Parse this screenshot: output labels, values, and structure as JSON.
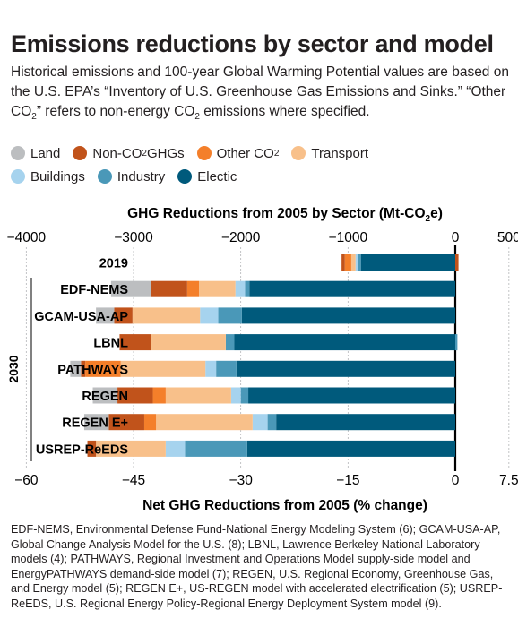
{
  "header": {
    "title": "Emissions reductions by sector and model",
    "subtitle_before": "Historical emissions and 100-year Global Warming Potential values are based on the U.S. EPA’s “Inventory of U.S. Greenhouse Gas Emissions and Sinks.” “Other CO",
    "subtitle_sub": "2",
    "subtitle_middle": "” refers to non-energy CO",
    "subtitle_after": " emissions where specified."
  },
  "legend": [
    {
      "label": "Land",
      "sub": "",
      "color": "#bcbec0"
    },
    {
      "label": "Non-CO",
      "sub": "2",
      "suffix": " GHGs",
      "color": "#c1531b"
    },
    {
      "label": "Other CO",
      "sub": "2",
      "suffix": "",
      "color": "#f47f2a"
    },
    {
      "label": "Transport",
      "sub": "",
      "color": "#f8c08a"
    },
    {
      "label": "Buildings",
      "sub": "",
      "color": "#a6d3ee"
    },
    {
      "label": "Industry",
      "sub": "",
      "color": "#4a98b8"
    },
    {
      "label": "Electic",
      "sub": "",
      "color": "#005a7c"
    }
  ],
  "chart_data": {
    "type": "bar",
    "orientation": "horizontal",
    "stacked": true,
    "top_axis_title": "GHG Reductions from 2005 by Sector (Mt-CO",
    "top_axis_title_sub": "2",
    "top_axis_title_end": "e)",
    "top_axis_ticks": [
      "−4000",
      "−3000",
      "−2000",
      "−1000",
      "0",
      "500"
    ],
    "top_axis_values": [
      -4000,
      -3000,
      -2000,
      -1000,
      0,
      500
    ],
    "xlim": [
      -4000,
      500
    ],
    "bottom_axis_title": "Net GHG Reductions from 2005 (% change)",
    "bottom_axis_ticks": [
      "−60",
      "−45",
      "−30",
      "−15",
      "0",
      "7.5"
    ],
    "bottom_axis_values": [
      -60,
      -45,
      -30,
      -15,
      0,
      7.5
    ],
    "group_label": "2030",
    "categories": [
      "2019",
      "EDF-NEMS",
      "GCAM-USA-AP",
      "LBNL",
      "PATHWAYS",
      "REGEN",
      "REGEN E+",
      "USREP-ReEDS"
    ],
    "series_order": [
      "Land",
      "Non-CO2 GHGs",
      "Other CO2",
      "Transport",
      "Buildings",
      "Industry",
      "Electic"
    ],
    "values": {
      "2019": [
        0,
        -30,
        -60,
        -40,
        -20,
        -30,
        -880
      ],
      "EDF-NEMS": [
        -370,
        -340,
        -110,
        -340,
        -90,
        -40,
        -1920
      ],
      "GCAM-USA-AP": [
        -170,
        -170,
        0,
        -630,
        -170,
        -220,
        -1990
      ],
      "LBNL": [
        0,
        -290,
        0,
        -700,
        0,
        -80,
        -2060
      ],
      "PATHWAYS": [
        -100,
        -40,
        -330,
        -790,
        -100,
        -190,
        -2040
      ],
      "REGEN": [
        -230,
        -330,
        -120,
        -610,
        -90,
        -70,
        -1930
      ],
      "REGEN E+": [
        -230,
        -330,
        -110,
        -900,
        -140,
        -80,
        -1670
      ],
      "USREP-ReEDS": [
        0,
        -80,
        0,
        -650,
        -180,
        -580,
        -1940
      ]
    },
    "positive_values": {
      "2019": 30,
      "LBNL": 20
    }
  },
  "footnote": "EDF-NEMS, Environmental Defense Fund-National Energy Modeling System (6); GCAM-USA-AP, Global Change Analysis Model for the U.S. (8); LBNL, Lawrence Berkeley National Laboratory models (4); PATHWAYS, Regional Investment and Operations Model supply-side model and EnergyPATHWAYS demand-side model (7); REGEN, U.S. Regional Economy, Greenhouse Gas, and Energy model (5); REGEN E+, US-REGEN model with accelerated electrification (5); USREP-ReEDS, U.S. Regional Energy Policy-Regional Energy Deployment System model (9)."
}
